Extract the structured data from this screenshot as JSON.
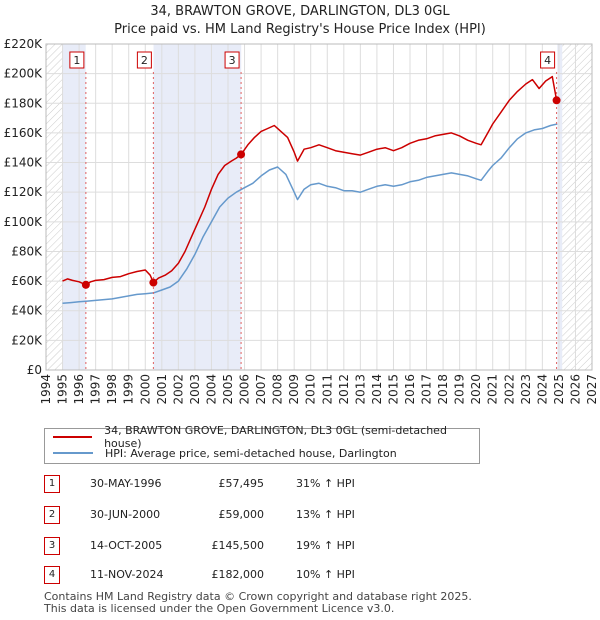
{
  "header": {
    "title": "34, BRAWTON GROVE, DARLINGTON, DL3 0GL",
    "subtitle": "Price paid vs. HM Land Registry's House Price Index (HPI)"
  },
  "legend": [
    {
      "label": "34, BRAWTON GROVE, DARLINGTON, DL3 0GL (semi-detached house)",
      "color": "#cc0000"
    },
    {
      "label": "HPI: Average price, semi-detached house, Darlington",
      "color": "#6699cc"
    }
  ],
  "sales": [
    {
      "num": "1",
      "date": "30-MAY-1996",
      "price": "£57,495",
      "hpi": "31% ↑ HPI"
    },
    {
      "num": "2",
      "date": "30-JUN-2000",
      "price": "£59,000",
      "hpi": "13% ↑ HPI"
    },
    {
      "num": "3",
      "date": "14-OCT-2005",
      "price": "£145,500",
      "hpi": "19% ↑ HPI"
    },
    {
      "num": "4",
      "date": "11-NOV-2024",
      "price": "£182,000",
      "hpi": "10% ↑ HPI"
    }
  ],
  "footer": {
    "line1": "Contains HM Land Registry data © Crown copyright and database right 2025.",
    "line2": "This data is licensed under the Open Government Licence v3.0."
  },
  "chart_data": {
    "type": "line",
    "title": "34, BRAWTON GROVE, DARLINGTON, DL3 0GL",
    "subtitle": "Price paid vs. HM Land Registry's House Price Index (HPI)",
    "xlim": [
      1994,
      2027
    ],
    "ylim": [
      0,
      220000
    ],
    "x_ticks": [
      1994,
      1995,
      1996,
      1997,
      1998,
      1999,
      2000,
      2001,
      2002,
      2003,
      2004,
      2005,
      2006,
      2007,
      2008,
      2009,
      2010,
      2011,
      2012,
      2013,
      2014,
      2015,
      2016,
      2017,
      2018,
      2019,
      2020,
      2021,
      2022,
      2023,
      2024,
      2025,
      2026,
      2027
    ],
    "y_ticks": [
      {
        "value": 0,
        "label": "£0"
      },
      {
        "value": 20000,
        "label": "£20K"
      },
      {
        "value": 40000,
        "label": "£40K"
      },
      {
        "value": 60000,
        "label": "£60K"
      },
      {
        "value": 80000,
        "label": "£80K"
      },
      {
        "value": 100000,
        "label": "£100K"
      },
      {
        "value": 120000,
        "label": "£120K"
      },
      {
        "value": 140000,
        "label": "£140K"
      },
      {
        "value": 160000,
        "label": "£160K"
      },
      {
        "value": 180000,
        "label": "£180K"
      },
      {
        "value": 200000,
        "label": "£200K"
      },
      {
        "value": 220000,
        "label": "£220K"
      }
    ],
    "shaded_ranges": [
      [
        1995.0,
        1996.4
      ],
      [
        2000.5,
        2005.8
      ],
      [
        2024.9,
        2025.2
      ]
    ],
    "hatched_ranges": [
      [
        1994.0,
        1995.0
      ],
      [
        2025.2,
        2027.0
      ]
    ],
    "series": [
      {
        "name": "34, BRAWTON GROVE, DARLINGTON, DL3 0GL (semi-detached house)",
        "color": "#cc0000",
        "points": [
          [
            1995.0,
            60000
          ],
          [
            1995.3,
            61500
          ],
          [
            1995.6,
            60500
          ],
          [
            1996.0,
            59500
          ],
          [
            1996.41,
            57495
          ],
          [
            1996.7,
            59500
          ],
          [
            1997.0,
            60500
          ],
          [
            1997.5,
            61000
          ],
          [
            1998.0,
            62500
          ],
          [
            1998.5,
            63000
          ],
          [
            1999.0,
            65000
          ],
          [
            1999.5,
            66500
          ],
          [
            2000.0,
            67500
          ],
          [
            2000.3,
            64000
          ],
          [
            2000.49,
            59000
          ],
          [
            2000.8,
            62000
          ],
          [
            2001.2,
            64000
          ],
          [
            2001.6,
            67000
          ],
          [
            2002.0,
            72000
          ],
          [
            2002.4,
            80000
          ],
          [
            2002.8,
            90000
          ],
          [
            2003.2,
            100000
          ],
          [
            2003.6,
            110000
          ],
          [
            2004.0,
            122000
          ],
          [
            2004.4,
            132000
          ],
          [
            2004.8,
            138000
          ],
          [
            2005.2,
            141000
          ],
          [
            2005.5,
            143000
          ],
          [
            2005.79,
            145500
          ],
          [
            2006.2,
            152000
          ],
          [
            2006.6,
            157000
          ],
          [
            2007.0,
            161000
          ],
          [
            2007.4,
            163000
          ],
          [
            2007.8,
            165000
          ],
          [
            2008.2,
            161000
          ],
          [
            2008.6,
            157000
          ],
          [
            2009.0,
            147000
          ],
          [
            2009.2,
            141000
          ],
          [
            2009.6,
            149000
          ],
          [
            2010.0,
            150000
          ],
          [
            2010.5,
            152000
          ],
          [
            2011.0,
            150000
          ],
          [
            2011.5,
            148000
          ],
          [
            2012.0,
            147000
          ],
          [
            2012.5,
            146000
          ],
          [
            2013.0,
            145000
          ],
          [
            2013.5,
            147000
          ],
          [
            2014.0,
            149000
          ],
          [
            2014.5,
            150000
          ],
          [
            2015.0,
            148000
          ],
          [
            2015.5,
            150000
          ],
          [
            2016.0,
            153000
          ],
          [
            2016.5,
            155000
          ],
          [
            2017.0,
            156000
          ],
          [
            2017.5,
            158000
          ],
          [
            2018.0,
            159000
          ],
          [
            2018.5,
            160000
          ],
          [
            2019.0,
            158000
          ],
          [
            2019.5,
            155000
          ],
          [
            2020.0,
            153000
          ],
          [
            2020.3,
            152000
          ],
          [
            2020.7,
            160000
          ],
          [
            2021.0,
            166000
          ],
          [
            2021.5,
            174000
          ],
          [
            2022.0,
            182000
          ],
          [
            2022.5,
            188000
          ],
          [
            2023.0,
            193000
          ],
          [
            2023.4,
            196000
          ],
          [
            2023.8,
            190000
          ],
          [
            2024.2,
            195000
          ],
          [
            2024.6,
            198000
          ],
          [
            2024.86,
            182000
          ]
        ]
      },
      {
        "name": "HPI: Average price, semi-detached house, Darlington",
        "color": "#6699cc",
        "points": [
          [
            1995.0,
            45000
          ],
          [
            1995.5,
            45500
          ],
          [
            1996.0,
            46000
          ],
          [
            1996.5,
            46500
          ],
          [
            1997.0,
            47000
          ],
          [
            1997.5,
            47500
          ],
          [
            1998.0,
            48000
          ],
          [
            1998.5,
            49000
          ],
          [
            1999.0,
            50000
          ],
          [
            1999.5,
            51000
          ],
          [
            2000.0,
            51500
          ],
          [
            2000.5,
            52000
          ],
          [
            2001.0,
            54000
          ],
          [
            2001.5,
            56000
          ],
          [
            2002.0,
            60000
          ],
          [
            2002.5,
            68000
          ],
          [
            2003.0,
            78000
          ],
          [
            2003.5,
            90000
          ],
          [
            2004.0,
            100000
          ],
          [
            2004.5,
            110000
          ],
          [
            2005.0,
            116000
          ],
          [
            2005.5,
            120000
          ],
          [
            2006.0,
            123000
          ],
          [
            2006.5,
            126000
          ],
          [
            2007.0,
            131000
          ],
          [
            2007.5,
            135000
          ],
          [
            2008.0,
            137000
          ],
          [
            2008.5,
            132000
          ],
          [
            2009.0,
            120000
          ],
          [
            2009.2,
            115000
          ],
          [
            2009.6,
            122000
          ],
          [
            2010.0,
            125000
          ],
          [
            2010.5,
            126000
          ],
          [
            2011.0,
            124000
          ],
          [
            2011.5,
            123000
          ],
          [
            2012.0,
            121000
          ],
          [
            2012.5,
            121000
          ],
          [
            2013.0,
            120000
          ],
          [
            2013.5,
            122000
          ],
          [
            2014.0,
            124000
          ],
          [
            2014.5,
            125000
          ],
          [
            2015.0,
            124000
          ],
          [
            2015.5,
            125000
          ],
          [
            2016.0,
            127000
          ],
          [
            2016.5,
            128000
          ],
          [
            2017.0,
            130000
          ],
          [
            2017.5,
            131000
          ],
          [
            2018.0,
            132000
          ],
          [
            2018.5,
            133000
          ],
          [
            2019.0,
            132000
          ],
          [
            2019.5,
            131000
          ],
          [
            2020.0,
            129000
          ],
          [
            2020.3,
            128000
          ],
          [
            2020.7,
            134000
          ],
          [
            2021.0,
            138000
          ],
          [
            2021.5,
            143000
          ],
          [
            2022.0,
            150000
          ],
          [
            2022.5,
            156000
          ],
          [
            2023.0,
            160000
          ],
          [
            2023.5,
            162000
          ],
          [
            2024.0,
            163000
          ],
          [
            2024.5,
            165000
          ],
          [
            2024.9,
            166000
          ]
        ]
      }
    ],
    "sale_points": [
      {
        "num": "1",
        "x": 1996.41,
        "y": 57495
      },
      {
        "num": "2",
        "x": 2000.49,
        "y": 59000
      },
      {
        "num": "3",
        "x": 2005.79,
        "y": 145500
      },
      {
        "num": "4",
        "x": 2024.86,
        "y": 182000
      }
    ]
  }
}
